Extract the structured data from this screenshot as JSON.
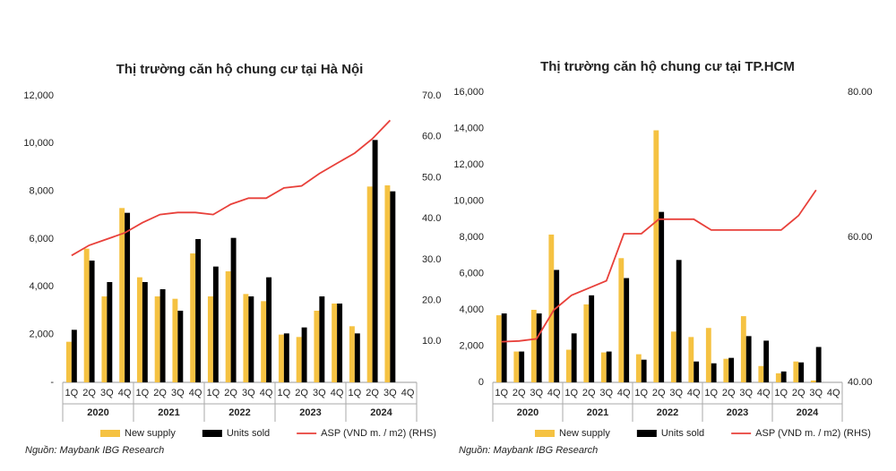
{
  "chart_data": [
    {
      "type": "bar",
      "title": "Thị trường căn hộ chung cư tại Hà Nội",
      "categories": [
        "1Q",
        "2Q",
        "3Q",
        "4Q",
        "1Q",
        "2Q",
        "3Q",
        "4Q",
        "1Q",
        "2Q",
        "3Q",
        "4Q",
        "1Q",
        "2Q",
        "3Q",
        "4Q",
        "1Q",
        "2Q",
        "3Q",
        "4Q"
      ],
      "groups": [
        "2020",
        "2021",
        "2022",
        "2023",
        "2024"
      ],
      "series": [
        {
          "name": "New supply",
          "color": "#f5c242",
          "values": [
            1700,
            5600,
            3600,
            7300,
            4400,
            3600,
            3500,
            5400,
            3600,
            4650,
            3700,
            3400,
            2000,
            1900,
            3000,
            3300,
            2350,
            8200,
            8250,
            null
          ]
        },
        {
          "name": "Units sold",
          "color": "#000000",
          "values": [
            2200,
            5100,
            4200,
            7100,
            4200,
            3900,
            3000,
            6000,
            4850,
            6050,
            3600,
            4400,
            2050,
            2300,
            3600,
            3300,
            2050,
            10150,
            8000,
            null
          ]
        },
        {
          "name": "ASP (VND m. / m2) (RHS)",
          "color": "#e8403a",
          "type": "line",
          "axis": "y2",
          "values": [
            31,
            33.5,
            35,
            36.5,
            39,
            41,
            41.5,
            41.5,
            41,
            43.5,
            45,
            45,
            47.5,
            48,
            51,
            53.5,
            56,
            59.5,
            64,
            null
          ]
        }
      ],
      "ylim": [
        0,
        12000
      ],
      "yticks": [
        {
          "value": 0,
          "label": "-"
        },
        {
          "value": 2000,
          "label": "2,000"
        },
        {
          "value": 4000,
          "label": "4,000"
        },
        {
          "value": 6000,
          "label": "6,000"
        },
        {
          "value": 8000,
          "label": "8,000"
        },
        {
          "value": 10000,
          "label": "10,000"
        },
        {
          "value": 12000,
          "label": "12,000"
        }
      ],
      "y2lim": [
        0,
        70
      ],
      "y2ticks": [
        {
          "value": 10,
          "label": "10.0"
        },
        {
          "value": 20,
          "label": "20.0"
        },
        {
          "value": 30,
          "label": "30.0"
        },
        {
          "value": 40,
          "label": "40.0"
        },
        {
          "value": 50,
          "label": "50.0"
        },
        {
          "value": 60,
          "label": "60.0"
        },
        {
          "value": 70,
          "label": "70.0"
        }
      ],
      "grid": false,
      "legend": "bottom",
      "source": "Nguồn: Maybank IBG Research"
    },
    {
      "type": "bar",
      "title": "Thị trường căn hộ chung cư tại TP.HCM",
      "categories": [
        "1Q",
        "2Q",
        "3Q",
        "4Q",
        "1Q",
        "2Q",
        "3Q",
        "4Q",
        "1Q",
        "2Q",
        "3Q",
        "4Q",
        "1Q",
        "2Q",
        "3Q",
        "4Q",
        "1Q",
        "2Q",
        "3Q",
        "4Q"
      ],
      "groups": [
        "2020",
        "2021",
        "2022",
        "2023",
        "2024"
      ],
      "series": [
        {
          "name": "New supply",
          "color": "#f5c242",
          "values": [
            3700,
            1700,
            4000,
            8150,
            1800,
            4300,
            1650,
            6850,
            1550,
            13900,
            2800,
            2500,
            3000,
            1300,
            3650,
            900,
            500,
            1150,
            100,
            null
          ]
        },
        {
          "name": "Units sold",
          "color": "#000000",
          "values": [
            3800,
            1700,
            3800,
            6200,
            2700,
            4800,
            1700,
            5750,
            1250,
            9400,
            6750,
            1150,
            1050,
            1350,
            2550,
            2300,
            600,
            1100,
            1950,
            null
          ]
        },
        {
          "name": "ASP (VND m. / m2) (RHS)",
          "color": "#e8403a",
          "type": "line",
          "axis": "y2",
          "values": [
            45.6,
            45.7,
            46,
            50,
            52,
            53,
            54,
            60.5,
            60.5,
            62.5,
            62.5,
            62.5,
            61,
            61,
            61,
            61,
            61,
            63,
            66.5,
            null
          ]
        }
      ],
      "ylim": [
        0,
        16000
      ],
      "yticks": [
        0,
        {
          "value": 2000,
          "label": "2,000"
        },
        {
          "value": 4000,
          "label": "4,000"
        },
        {
          "value": 6000,
          "label": "6,000"
        },
        {
          "value": 8000,
          "label": "8,000"
        },
        {
          "value": 10000,
          "label": "10,000"
        },
        {
          "value": 12000,
          "label": "12,000"
        },
        {
          "value": 14000,
          "label": "14,000"
        },
        {
          "value": 16000,
          "label": "16,000"
        }
      ],
      "y2lim": [
        40,
        80
      ],
      "y2ticks": [
        {
          "value": 40,
          "label": "40.00"
        },
        {
          "value": 60,
          "label": "60.00"
        },
        {
          "value": 80,
          "label": "80.00"
        }
      ],
      "grid": false,
      "legend": "bottom",
      "source": "Nguồn: Maybank IBG Research"
    }
  ]
}
